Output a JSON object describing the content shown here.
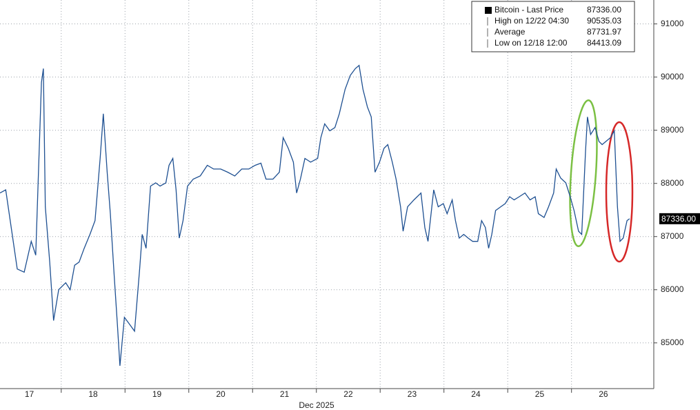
{
  "chart_data": {
    "type": "line",
    "x_label": "Dec 2025",
    "x": [
      16.54,
      16.63,
      16.7,
      16.81,
      16.92,
      17.03,
      17.1,
      17.19,
      17.22,
      17.25,
      17.32,
      17.38,
      17.46,
      17.57,
      17.64,
      17.71,
      17.78,
      17.86,
      17.95,
      18.03,
      18.11,
      18.16,
      18.22,
      18.27,
      18.33,
      18.38,
      18.42,
      18.49,
      18.57,
      18.65,
      18.73,
      18.77,
      18.83,
      18.9,
      18.98,
      19.05,
      19.14,
      19.19,
      19.25,
      19.3,
      19.35,
      19.41,
      19.48,
      19.57,
      19.68,
      19.79,
      19.89,
      20.0,
      20.11,
      20.22,
      20.33,
      20.44,
      20.54,
      20.63,
      20.71,
      20.82,
      20.92,
      20.98,
      21.06,
      21.14,
      21.19,
      21.25,
      21.32,
      21.41,
      21.52,
      21.57,
      21.63,
      21.71,
      21.79,
      21.86,
      21.95,
      22.03,
      22.11,
      22.17,
      22.23,
      22.3,
      22.36,
      22.42,
      22.49,
      22.56,
      22.62,
      22.69,
      22.75,
      22.82,
      22.86,
      22.93,
      23.03,
      23.14,
      23.2,
      23.25,
      23.34,
      23.41,
      23.49,
      23.55,
      23.63,
      23.68,
      23.74,
      23.81,
      23.88,
      23.95,
      24.03,
      24.09,
      24.15,
      24.2,
      24.25,
      24.31,
      24.39,
      24.46,
      24.53,
      24.6,
      24.68,
      24.77,
      24.85,
      24.93,
      24.98,
      25.07,
      25.14,
      25.22,
      25.26,
      25.33,
      25.41,
      25.48,
      25.54,
      25.61,
      25.66,
      25.72,
      25.75,
      25.8,
      25.87,
      25.93,
      25.98,
      26.04,
      26.11,
      26.17,
      26.22,
      26.26,
      26.31,
      26.37,
      26.41
    ],
    "series": [
      {
        "name": "Bitcoin - Last Price",
        "color": "#1d4f91",
        "values": [
          87820,
          87880,
          87300,
          86390,
          86330,
          86910,
          86650,
          89900,
          90160,
          87560,
          86520,
          85420,
          86000,
          86130,
          86000,
          86460,
          86520,
          86780,
          87040,
          87300,
          88470,
          89310,
          88210,
          87430,
          86260,
          85350,
          84570,
          85480,
          85350,
          85220,
          86390,
          87040,
          86780,
          87950,
          88010,
          87950,
          88010,
          88340,
          88470,
          87880,
          86970,
          87300,
          87950,
          88080,
          88140,
          88340,
          88270,
          88270,
          88210,
          88140,
          88270,
          88270,
          88340,
          88380,
          88080,
          88080,
          88210,
          88860,
          88660,
          88400,
          87820,
          88080,
          88470,
          88400,
          88470,
          88860,
          89120,
          88990,
          89050,
          89310,
          89770,
          90030,
          90160,
          90220,
          89770,
          89440,
          89250,
          88210,
          88400,
          88660,
          88730,
          88400,
          88080,
          87560,
          87100,
          87560,
          87690,
          87820,
          87170,
          86910,
          87880,
          87560,
          87620,
          87430,
          87690,
          87300,
          86970,
          87040,
          86970,
          86910,
          86910,
          87300,
          87170,
          86780,
          87040,
          87490,
          87560,
          87620,
          87750,
          87690,
          87750,
          87820,
          87690,
          87750,
          87430,
          87360,
          87560,
          87820,
          88270,
          88100,
          88010,
          87750,
          87490,
          87100,
          87040,
          88600,
          89250,
          88920,
          89050,
          88790,
          88730,
          88790,
          88860,
          88990,
          87560,
          86910,
          86970,
          87300,
          87336
        ]
      }
    ],
    "xlim": [
      16.54,
      26.79
    ],
    "xticks": [
      17,
      18,
      19,
      20,
      21,
      22,
      23,
      24,
      25,
      26
    ],
    "ylim": [
      84140,
      91450
    ],
    "yticks": [
      85000,
      86000,
      87000,
      88000,
      89000,
      90000,
      91000
    ],
    "grid": true,
    "legend": {
      "labels": [
        "Bitcoin - Last Price",
        "High on 12/22 04:30",
        "Average",
        "Low on 12/18 12:00"
      ],
      "values": [
        87336.0,
        90535.03,
        87731.97,
        84413.09
      ],
      "value_labels": [
        "87336.00",
        "90535.03",
        "87731.97",
        "84413.09"
      ]
    }
  }
}
